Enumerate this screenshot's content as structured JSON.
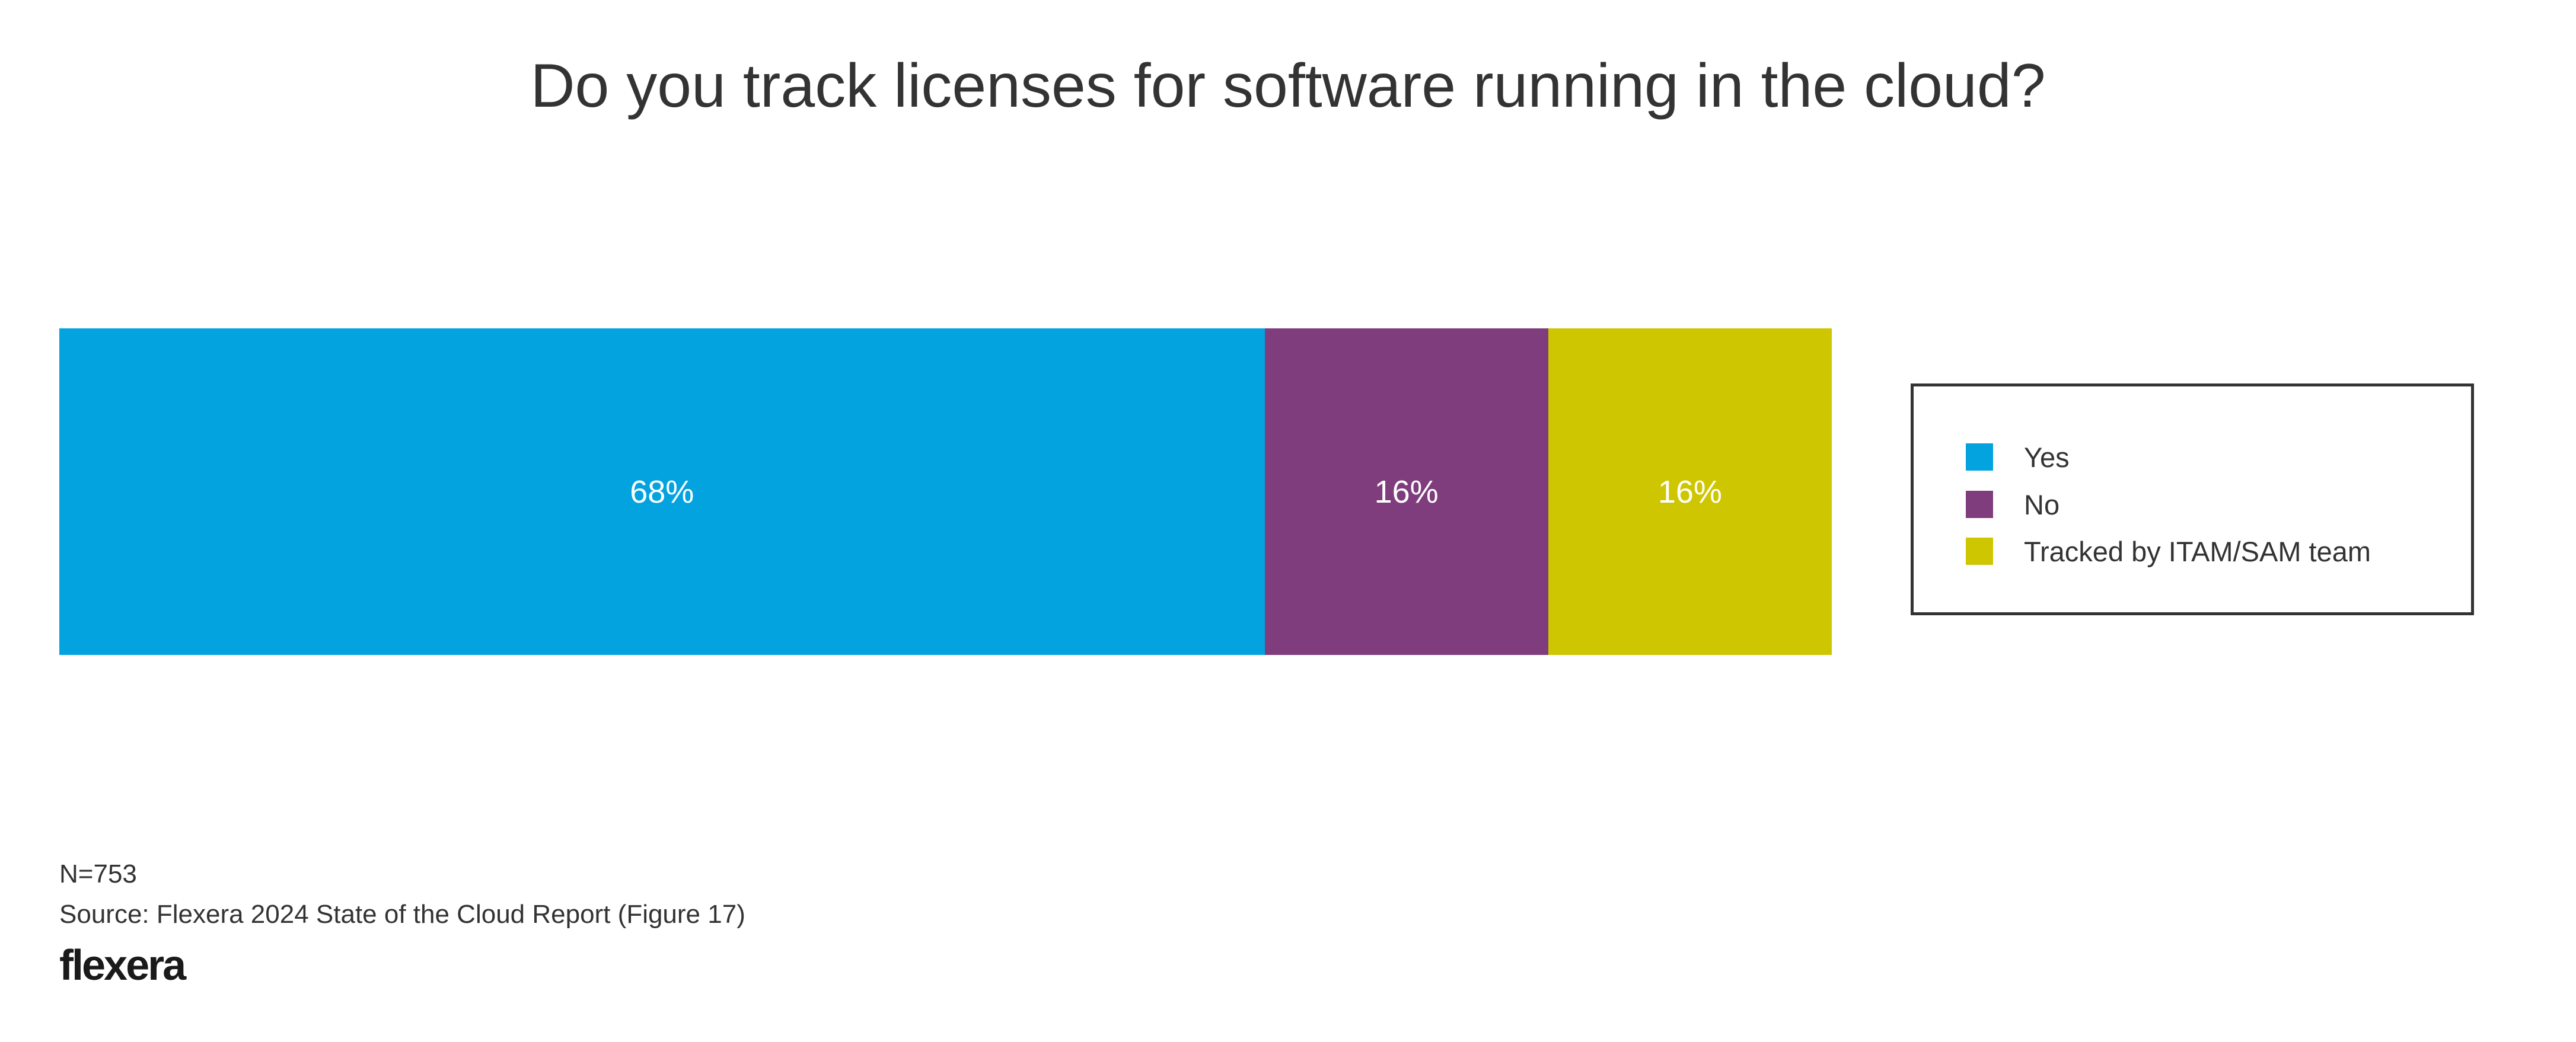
{
  "chart_data": {
    "type": "bar",
    "orientation": "horizontal-stacked",
    "title": "Do you track licenses for software running in the cloud?",
    "categories": [
      "Yes",
      "No",
      "Tracked by ITAM/SAM team"
    ],
    "values": [
      68,
      16,
      16
    ],
    "data_labels": [
      "68%",
      "16%",
      "16%"
    ],
    "colors": [
      "#03a3e0",
      "#7f3d7d",
      "#cec600"
    ],
    "legend": {
      "placement": "right",
      "entries": [
        "Yes",
        "No",
        "Tracked by ITAM/SAM team"
      ]
    },
    "xlim": [
      0,
      100
    ],
    "grid": false
  },
  "footer": {
    "n": "N=753",
    "source": "Source: Flexera 2024 State of the Cloud Report (Figure 17)",
    "logo": "flexera"
  }
}
